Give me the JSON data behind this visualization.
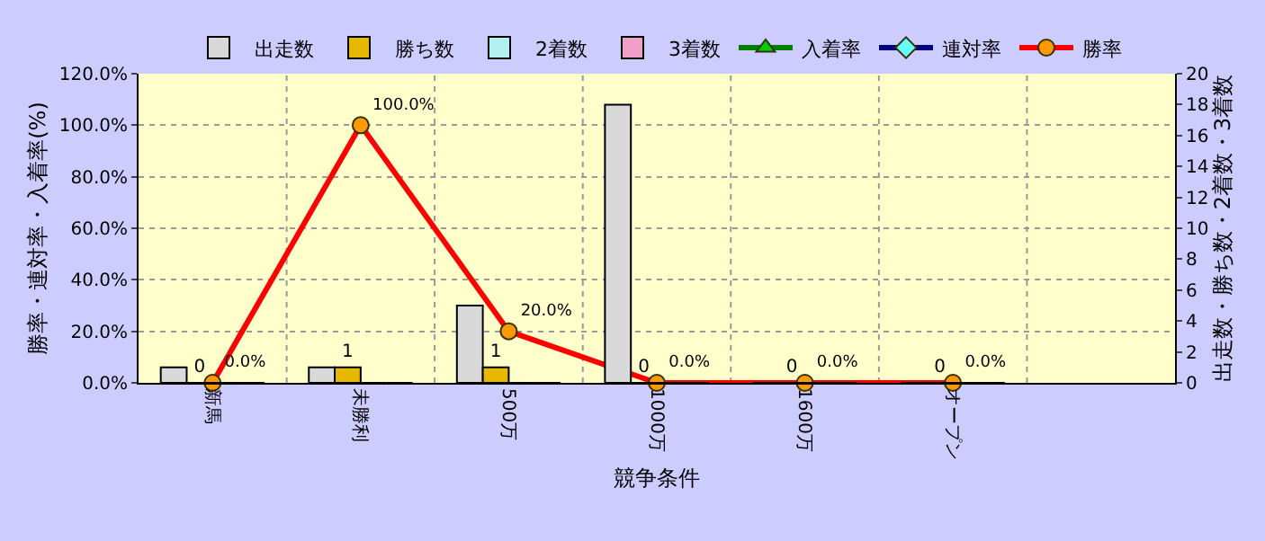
{
  "chart_data": {
    "type": "bar",
    "xlabel": "競争条件",
    "ylabel": "勝率・連対率・入着率(%)",
    "y2label": "出走数・勝ち数・2着数・3着数",
    "categories": [
      "新馬",
      "未勝利",
      "500万",
      "1000万",
      "1600万",
      "オープン",
      null
    ],
    "series": [
      {
        "name": "出走数",
        "axis": "y2",
        "color": "#d9d9d9",
        "values": [
          1,
          1,
          5,
          18,
          0,
          0,
          null
        ]
      },
      {
        "name": "勝ち数",
        "axis": "y2",
        "color": "#e6b800",
        "values": [
          0,
          1,
          1,
          0,
          0,
          0,
          null
        ],
        "value_labels": [
          "0",
          "1",
          "1",
          "0",
          "0",
          "0",
          null
        ]
      },
      {
        "name": "2着数",
        "axis": "y2",
        "color": "#b3f0f0",
        "values": [
          0,
          0,
          0,
          0,
          0,
          0,
          null
        ]
      },
      {
        "name": "3着数",
        "axis": "y2",
        "color": "#f0a0c8",
        "values": [
          0,
          0,
          0,
          0,
          0,
          0,
          null
        ]
      },
      {
        "name": "入着率",
        "type": "line",
        "axis": "y",
        "color": "#008000",
        "marker": "triangle",
        "values": [
          null,
          null,
          null,
          null,
          null,
          null,
          null
        ]
      },
      {
        "name": "連対率",
        "type": "line",
        "axis": "y",
        "color": "#000080",
        "marker": "diamond",
        "values": [
          null,
          null,
          null,
          null,
          null,
          null,
          null
        ]
      },
      {
        "name": "勝率",
        "type": "line",
        "axis": "y",
        "color": "#ff0000",
        "marker": "circle",
        "values": [
          0,
          100,
          20,
          0,
          0,
          0,
          null
        ],
        "value_labels": [
          "0.0%",
          "100.0%",
          "20.0%",
          "0.0%",
          "0.0%",
          "0.0%",
          null
        ]
      }
    ],
    "ylim": [
      0,
      120
    ],
    "yticks": [
      {
        "value": 0,
        "label": "0.0%"
      },
      {
        "value": 20,
        "label": "20.0%"
      },
      {
        "value": 40,
        "label": "40.0%"
      },
      {
        "value": 60,
        "label": "60.0%"
      },
      {
        "value": 80,
        "label": "80.0%"
      },
      {
        "value": 100,
        "label": "100.0%"
      },
      {
        "value": 120,
        "label": "120.0%"
      }
    ],
    "y2lim": [
      0,
      20
    ],
    "y2ticks": [
      0,
      2,
      4,
      6,
      8,
      10,
      12,
      14,
      16,
      18,
      20
    ],
    "grid": true,
    "legend": "top"
  }
}
